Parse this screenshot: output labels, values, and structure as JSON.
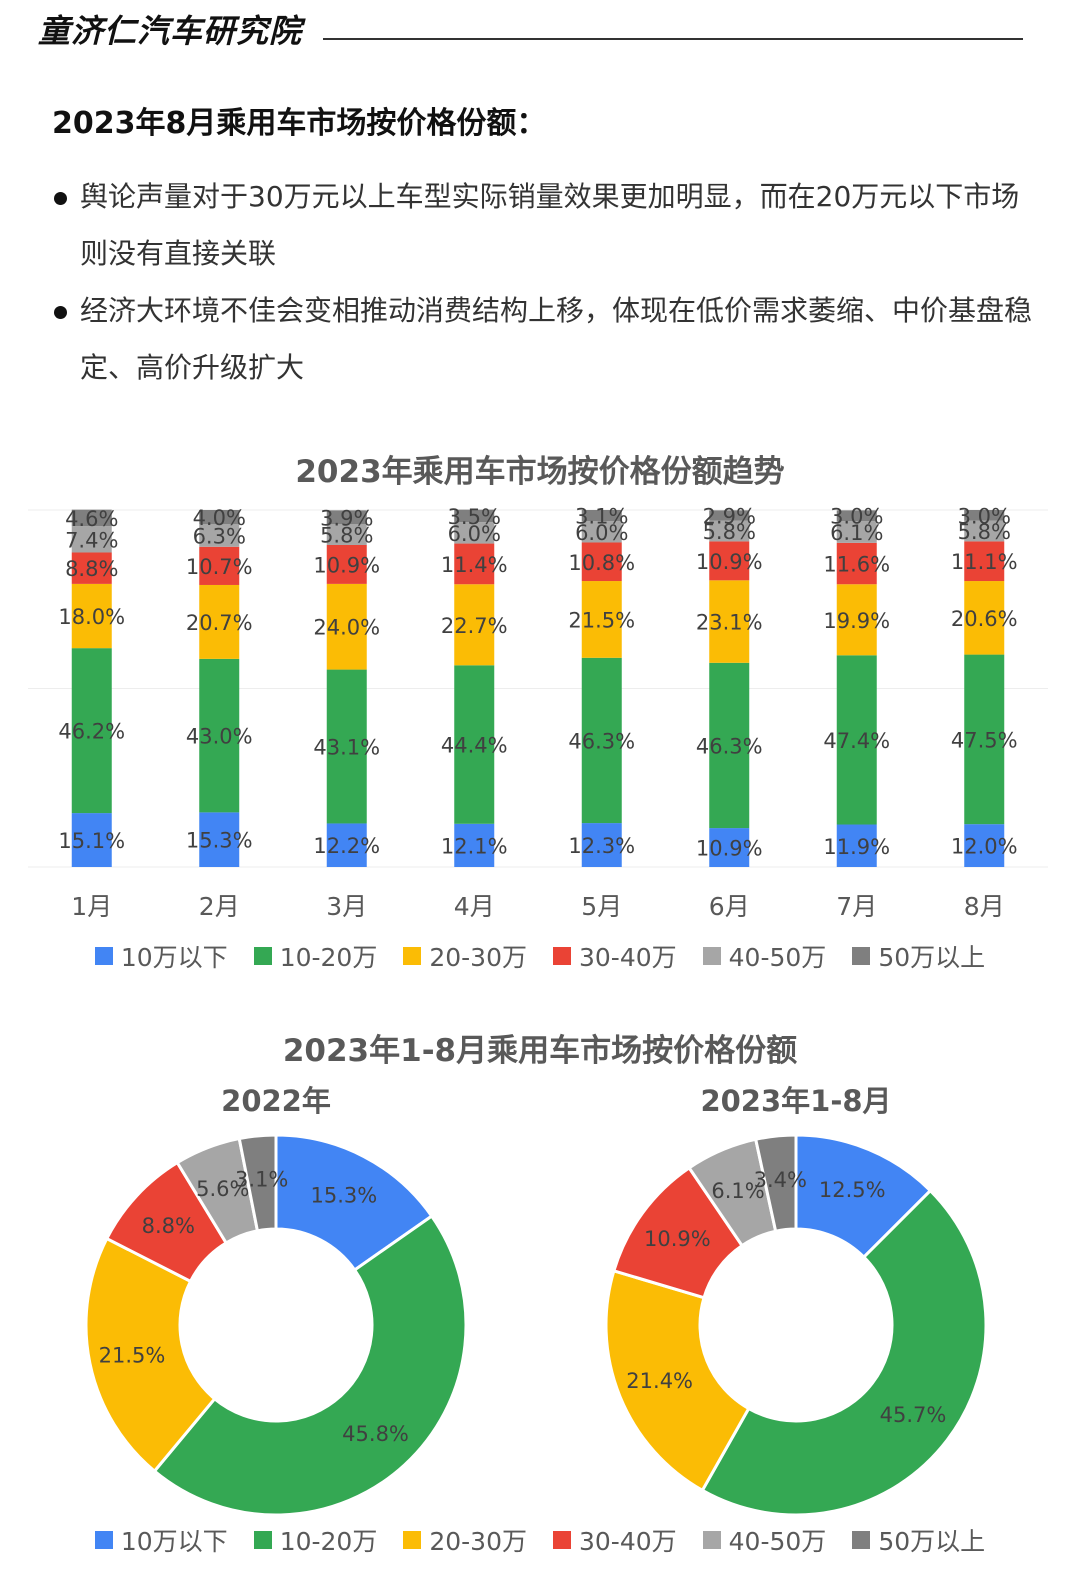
{
  "header": {
    "brand": "童济仁汽车研究院"
  },
  "heading": "2023年8月乘用车市场按价格份额：",
  "bullets": [
    "舆论声量对于30万元以上车型实际销量效果更加明显，而在20万元以下市场则没有直接关联",
    "经济大环境不佳会变相推动消费结构上移，体现在低价需求萎缩、中价基盘稳定、高价升级扩大"
  ],
  "colors": [
    "#4285F4",
    "#34A853",
    "#FBBC05",
    "#EA4335",
    "#A6A6A6",
    "#7F7F7F"
  ],
  "legend": [
    "10万以下",
    "10-20万",
    "20-30万",
    "30-40万",
    "40-50万",
    "50万以上"
  ],
  "chart_data": [
    {
      "type": "bar",
      "stacked": true,
      "title": "2023年乘用车市场按价格份额趋势",
      "categories": [
        "1月",
        "2月",
        "3月",
        "4月",
        "5月",
        "6月",
        "7月",
        "8月"
      ],
      "series": [
        {
          "name": "10万以下",
          "values": [
            15.1,
            15.3,
            12.2,
            12.1,
            12.3,
            10.9,
            11.9,
            12.0
          ],
          "labels": [
            "15.1%",
            "15.3%",
            "12.2%",
            "12.1%",
            "12.3%",
            "10.9%",
            "11.9%",
            "12.0%"
          ]
        },
        {
          "name": "10-20万",
          "values": [
            46.2,
            43.0,
            43.1,
            44.4,
            46.3,
            46.3,
            47.4,
            47.5
          ],
          "labels": [
            "46.2%",
            "43.0%",
            "43.1%",
            "44.4%",
            "46.3%",
            "46.3%",
            "47.4%",
            "47.5%"
          ]
        },
        {
          "name": "20-30万",
          "values": [
            18.0,
            20.7,
            24.0,
            22.7,
            21.5,
            23.1,
            19.9,
            20.6
          ],
          "labels": [
            "18.0%",
            "20.7%",
            "24.0%",
            "22.7%",
            "21.5%",
            "23.1%",
            "19.9%",
            "20.6%"
          ]
        },
        {
          "name": "30-40万",
          "values": [
            8.8,
            10.7,
            10.9,
            11.4,
            10.8,
            10.9,
            11.6,
            11.1
          ],
          "labels": [
            "8.8%",
            "10.7%",
            "10.9%",
            "11.4%",
            "10.8%",
            "10.9%",
            "11.6%",
            "11.1%"
          ]
        },
        {
          "name": "40-50万",
          "values": [
            7.4,
            6.3,
            5.8,
            6.0,
            6.0,
            5.8,
            6.1,
            5.8
          ],
          "labels": [
            "7.4%",
            "6.3%",
            "5.8%",
            "6.0%",
            "6.0%",
            "5.8%",
            "6.1%",
            "5.8%"
          ]
        },
        {
          "name": "50万以上",
          "values": [
            4.6,
            4.0,
            3.9,
            3.5,
            3.1,
            2.9,
            3.0,
            3.0
          ],
          "labels": [
            "4.6%",
            "4.0%",
            "3.9%",
            "3.5%",
            "3.1%",
            "2.9%",
            "3.0%",
            "3.0%"
          ]
        }
      ],
      "ylim": [
        0,
        100
      ],
      "grid": true,
      "legend_position": "bottom"
    },
    {
      "type": "pie",
      "donut": true,
      "title": "2023年1-8月乘用车市场按价格份额",
      "subtitle": "2022年",
      "categories": [
        "10万以下",
        "10-20万",
        "20-30万",
        "30-40万",
        "40-50万",
        "50万以上"
      ],
      "values": [
        15.3,
        45.8,
        21.5,
        8.8,
        5.6,
        3.1
      ],
      "labels": [
        "15.3%",
        "45.8%",
        "21.5%",
        "8.8%",
        "5.6%",
        "3.1%"
      ],
      "legend_position": "bottom"
    },
    {
      "type": "pie",
      "donut": true,
      "title": "2023年1-8月乘用车市场按价格份额",
      "subtitle": "2023年1-8月",
      "categories": [
        "10万以下",
        "10-20万",
        "20-30万",
        "30-40万",
        "40-50万",
        "50万以上"
      ],
      "values": [
        12.5,
        45.7,
        21.4,
        10.9,
        6.1,
        3.4
      ],
      "labels": [
        "12.5%",
        "45.7%",
        "21.4%",
        "10.9%",
        "6.1%",
        "3.4%"
      ],
      "legend_position": "bottom"
    }
  ]
}
